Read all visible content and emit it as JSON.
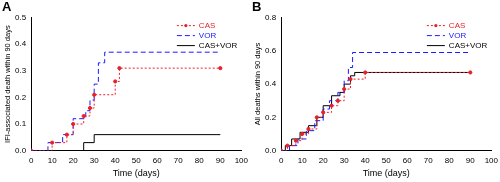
{
  "chart_data": [
    {
      "type": "line",
      "title": "A",
      "x_label": "Time (days)",
      "y_label": "IFI-associated death within 90 days",
      "xlim": [
        0,
        100
      ],
      "xticks": [
        0,
        10,
        20,
        30,
        40,
        50,
        60,
        70,
        80,
        90,
        100
      ],
      "ylim": [
        0,
        0.5
      ],
      "yticks": [
        {
          "value": 0,
          "label": "0.0"
        },
        0.1,
        0.2,
        0.3,
        0.4,
        0.5
      ],
      "grid": false,
      "legend": "upper right",
      "series": [
        {
          "name": "CAS",
          "color": "#e8202a",
          "line_style": "dotted",
          "marker": "circle",
          "x": [
            0,
            10,
            17,
            20,
            25,
            28,
            30,
            40,
            42,
            90
          ],
          "values": [
            0,
            0.03,
            0.06,
            0.1,
            0.13,
            0.16,
            0.21,
            0.26,
            0.31,
            0.31
          ]
        },
        {
          "name": "VOR",
          "color": "#1a1aff",
          "line_style": "dashed",
          "marker": "none",
          "x": [
            0,
            8,
            15,
            20,
            26,
            28,
            30,
            32,
            35,
            90
          ],
          "values": [
            0,
            0.03,
            0.06,
            0.12,
            0.15,
            0.19,
            0.25,
            0.33,
            0.37,
            0.37
          ]
        },
        {
          "name": "CAS+VOR",
          "color": "#000000",
          "line_style": "solid",
          "marker": "none",
          "x": [
            0,
            25,
            30,
            90
          ],
          "values": [
            0,
            0.03,
            0.06,
            0.06
          ]
        }
      ]
    },
    {
      "type": "line",
      "title": "B",
      "x_label": "Time (days)",
      "y_label": "All deaths within 90 days",
      "xlim": [
        0,
        100
      ],
      "xticks": [
        0,
        10,
        20,
        30,
        40,
        50,
        60,
        70,
        80,
        90,
        100
      ],
      "ylim": [
        0,
        0.8
      ],
      "yticks": [
        {
          "value": 0,
          "label": "0.0"
        },
        0.2,
        0.4,
        0.6,
        0.8
      ],
      "grid": false,
      "legend": "upper right",
      "series": [
        {
          "name": "CAS",
          "color": "#e8202a",
          "line_style": "dotted",
          "marker": "circle",
          "x": [
            0,
            3,
            7,
            10,
            13,
            17,
            20,
            24,
            27,
            30,
            33,
            40,
            90
          ],
          "values": [
            0,
            0.03,
            0.06,
            0.1,
            0.13,
            0.2,
            0.23,
            0.27,
            0.3,
            0.37,
            0.43,
            0.47,
            0.47
          ]
        },
        {
          "name": "VOR",
          "color": "#1a1aff",
          "line_style": "dashed",
          "marker": "none",
          "x": [
            0,
            4,
            8,
            12,
            16,
            20,
            23,
            27,
            30,
            32,
            34,
            90
          ],
          "values": [
            0,
            0.03,
            0.07,
            0.12,
            0.18,
            0.25,
            0.3,
            0.35,
            0.42,
            0.5,
            0.59,
            0.59
          ]
        },
        {
          "name": "CAS+VOR",
          "color": "#000000",
          "line_style": "solid",
          "marker": "none",
          "x": [
            0,
            2,
            5,
            9,
            13,
            17,
            20,
            24,
            28,
            30,
            33,
            35,
            90
          ],
          "values": [
            0,
            0.03,
            0.07,
            0.11,
            0.15,
            0.2,
            0.27,
            0.33,
            0.35,
            0.4,
            0.45,
            0.47,
            0.47
          ]
        }
      ]
    }
  ]
}
